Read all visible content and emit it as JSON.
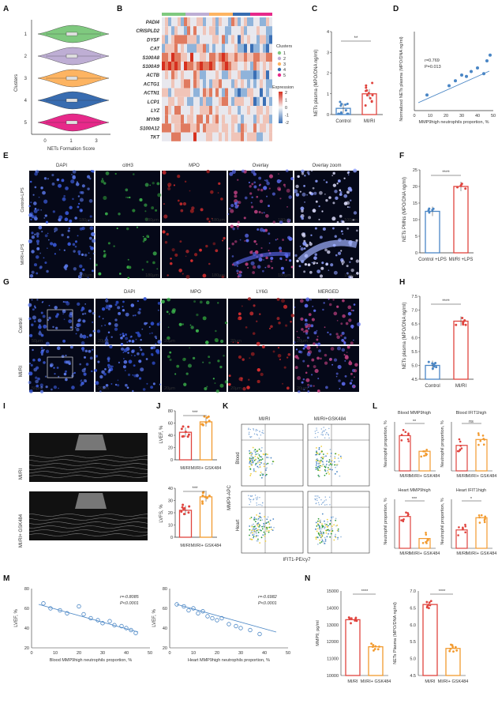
{
  "panel_letters": [
    "A",
    "B",
    "C",
    "D",
    "E",
    "F",
    "G",
    "H",
    "I",
    "J",
    "K",
    "L",
    "M",
    "N"
  ],
  "panelA": {
    "ylabel": "Clusters",
    "xlabel": "NETs Formation Score",
    "clusters": [
      "1",
      "2",
      "3",
      "4",
      "5"
    ],
    "xticks": [
      "0",
      "1",
      "3"
    ],
    "colors": [
      "#7fc97f",
      "#beaed4",
      "#fdb462",
      "#386cb0",
      "#e7298a"
    ]
  },
  "panelB": {
    "genes": [
      "PADI4",
      "CRISPLD2",
      "DYSF",
      "CAT",
      "S100A8",
      "S100A9",
      "ACTB",
      "ACTG1",
      "ACTN1",
      "LCP1",
      "LYZ",
      "MYH9",
      "S100A12",
      "TKT"
    ],
    "legend_title_clusters": "Clusters",
    "legend_clusters": [
      "1",
      "2",
      "3",
      "4",
      "5"
    ],
    "legend_title_expr": "Expression",
    "expr_ticks": [
      "2",
      "1",
      "0",
      "-1",
      "-2"
    ]
  },
  "panelC": {
    "ylabel": "NETs plasma (MPO/DNA ng/ml)",
    "categories": [
      "Control",
      "MI/RI"
    ],
    "yticks": [
      "0",
      "1",
      "2",
      "3",
      "4"
    ],
    "sig": "**"
  },
  "panelD": {
    "ylabel": "Normalized NETs plasma (MPO/DNA ng/ml)",
    "xlabel": "MMP9high neutrophils proportion, %",
    "xticks": [
      "0",
      "10",
      "20",
      "30",
      "40",
      "50"
    ],
    "stat_r": "r=0.769",
    "stat_p": "P=0.013"
  },
  "panelE": {
    "channels": [
      "DAPI",
      "citH3",
      "MPO",
      "Overlay",
      "Overlay zoom"
    ],
    "rows": [
      "Control+LPS",
      "MI/RI+LPS"
    ],
    "scale_bars": [
      "180μm",
      "180μm",
      "180μm",
      "180μm",
      "100μm"
    ]
  },
  "panelF": {
    "ylabel": "NETs PMNs (MPO/DNA ng/ml)",
    "categories": [
      "Control +LPS",
      "MI/RI +LPS"
    ],
    "yticks": [
      "0",
      "5",
      "10",
      "15",
      "20",
      "25"
    ],
    "sig": "****"
  },
  "panelG": {
    "channels": [
      "DAPI",
      "MPO",
      "LY6G",
      "MERGED"
    ],
    "rows": [
      "Control",
      "MI/RI"
    ],
    "scale_bars": [
      "50μm",
      "20μm",
      "20μm",
      "20μm",
      "20μm"
    ]
  },
  "panelH": {
    "ylabel": "NETs plasma (MPO/DNA ng/ml)",
    "categories": [
      "Control",
      "MI/RI"
    ],
    "yticks": [
      "4.5",
      "5.0",
      "5.5",
      "6.0",
      "6.5",
      "7.0",
      "7.5"
    ],
    "sig": "****"
  },
  "panelI": {
    "rows": [
      "MI/RI",
      "MI/RI+ GSK484"
    ]
  },
  "panelJ": {
    "top": {
      "ylabel": "LVEF, %",
      "yticks": [
        "0",
        "20",
        "40",
        "60",
        "80"
      ],
      "sig": "***"
    },
    "bottom": {
      "ylabel": "LVFS, %",
      "yticks": [
        "0",
        "10",
        "20",
        "30",
        "40"
      ],
      "sig": "***"
    },
    "categories": [
      "MI/RI",
      "MI/RI+ GSK484"
    ]
  },
  "panelK": {
    "columns": [
      "MI/RI",
      "MI/RI+GSK484"
    ],
    "rows": [
      "Blood",
      "Heart"
    ],
    "ylabel": "MMP9-APC",
    "xlabel": "IFIT1-PE/cy7"
  },
  "panelL": {
    "titles": [
      "Blood MMP9high",
      "Blood IFIT1high",
      "Heart MMP9high",
      "Heart IFIT1high"
    ],
    "ylabel": "Neutrophil proportion, %",
    "categories": [
      "MI/RI",
      "MI/RI+ GSK484"
    ],
    "sigs": [
      "**",
      "ns",
      "***",
      "*"
    ]
  },
  "panelM": {
    "left": {
      "ylabel": "LVEF, %",
      "xlabel": "Blood MMP9high neutrophils proportion, %",
      "stat_r": "r=-0.8085",
      "stat_p": "P<0.0001",
      "x": [
        5,
        8,
        12,
        15,
        20,
        22,
        25,
        28,
        30,
        33,
        35,
        38,
        40,
        42,
        44
      ],
      "y": [
        65,
        60,
        58,
        55,
        62,
        54,
        50,
        48,
        45,
        47,
        43,
        42,
        40,
        38,
        35
      ]
    },
    "right": {
      "ylabel": "LVEF, %",
      "xlabel": "Heart MMP9high neutrophils proportion, %",
      "stat_r": "r=-0.6982",
      "stat_p": "P<0.0001",
      "x": [
        3,
        6,
        8,
        10,
        12,
        14,
        16,
        18,
        20,
        22,
        25,
        28,
        30,
        34,
        38
      ],
      "y": [
        64,
        62,
        58,
        60,
        55,
        57,
        52,
        50,
        48,
        50,
        44,
        42,
        40,
        38,
        34
      ]
    },
    "xticks": [
      "0",
      "10",
      "20",
      "30",
      "40",
      "50"
    ],
    "yticks": [
      "20",
      "40",
      "60",
      "80"
    ]
  },
  "panelN": {
    "left": {
      "ylabel": "MMP9, pg/ml",
      "yticks": [
        "10000",
        "11000",
        "12000",
        "13000",
        "14000",
        "15000"
      ],
      "sig": "****"
    },
    "right": {
      "ylabel": "NETs Plasma (MPO/DNA ng/ml)",
      "yticks": [
        "4.5",
        "5.0",
        "5.5",
        "6.0",
        "6.5",
        "7.0"
      ],
      "sig": "****"
    },
    "categories": [
      "MI/RI",
      "MI/RI+ GSK484"
    ]
  },
  "chart_data": [
    {
      "type": "bar",
      "title": "",
      "categories": [
        "Control",
        "MI/RI"
      ],
      "values": [
        0.3,
        1.0
      ],
      "ylim": [
        0,
        4
      ],
      "ylabel": "NETs plasma (MPO/DNA ng/ml)"
    },
    {
      "type": "bar",
      "title": "",
      "categories": [
        "Control +LPS",
        "MI/RI +LPS"
      ],
      "values": [
        12.5,
        20
      ],
      "ylim": [
        0,
        25
      ],
      "ylabel": "NETs PMNs (MPO/DNA ng/ml)"
    },
    {
      "type": "bar",
      "title": "",
      "categories": [
        "Control",
        "MI/RI"
      ],
      "values": [
        5.0,
        6.6
      ],
      "ylim": [
        4.5,
        7.5
      ],
      "ylabel": "NETs plasma (MPO/DNA ng/ml)"
    },
    {
      "type": "bar",
      "title": "",
      "categories": [
        "MI/RI",
        "MI/RI+ GSK484"
      ],
      "values": [
        45,
        62
      ],
      "ylim": [
        0,
        80
      ],
      "ylabel": "LVEF, %"
    },
    {
      "type": "bar",
      "title": "",
      "categories": [
        "MI/RI",
        "MI/RI+ GSK484"
      ],
      "values": [
        22,
        33
      ],
      "ylim": [
        0,
        40
      ],
      "ylabel": "LVFS, %"
    },
    {
      "type": "bar",
      "title": "",
      "categories": [
        "MI/RI",
        "MI/RI+ GSK484"
      ],
      "values": [
        13300,
        11700
      ],
      "ylim": [
        10000,
        15000
      ],
      "ylabel": "MMP9, pg/ml"
    },
    {
      "type": "bar",
      "title": "",
      "categories": [
        "MI/RI",
        "MI/RI+ GSK484"
      ],
      "values": [
        6.6,
        5.3
      ],
      "ylim": [
        4.5,
        7.0
      ],
      "ylabel": "NETs Plasma (MPO/DNA ng/ml)"
    }
  ]
}
